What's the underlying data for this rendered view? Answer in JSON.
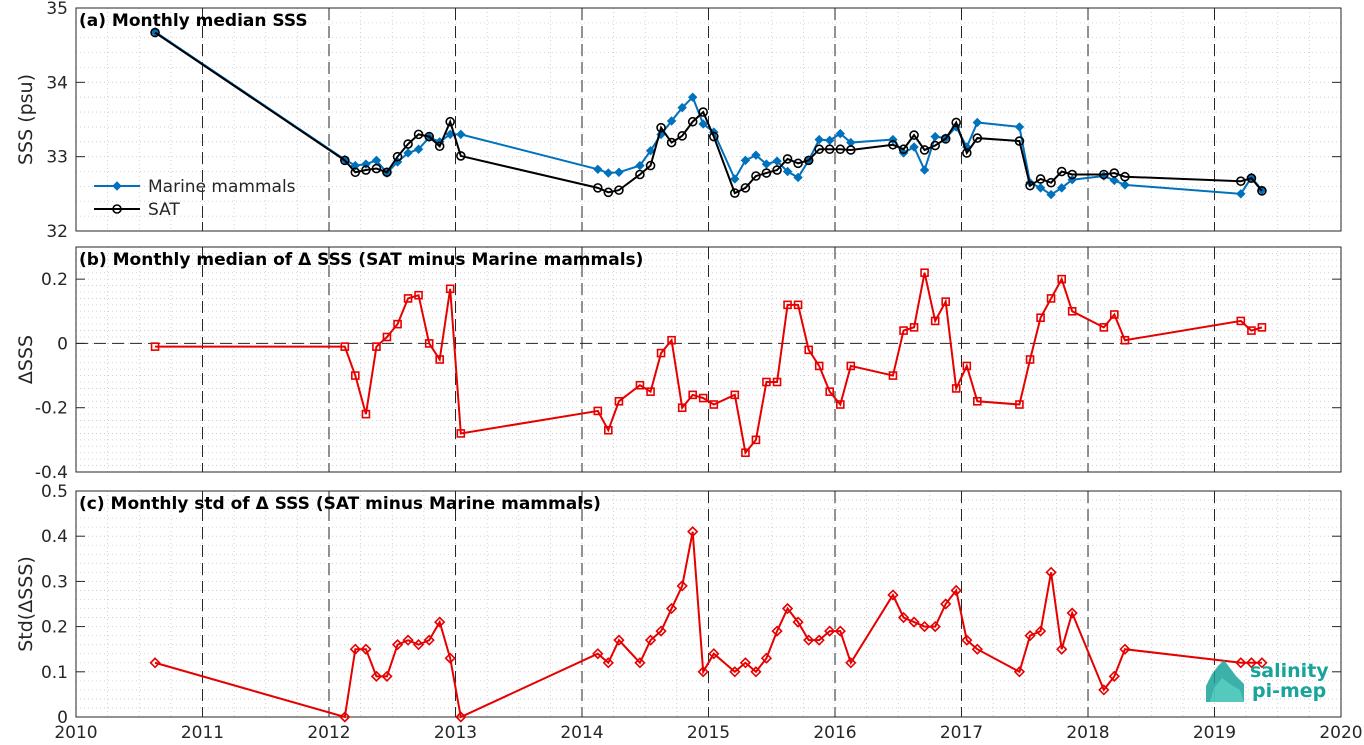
{
  "colors": {
    "marine": "#0072BD",
    "sat": "#000000",
    "delta": "#E60000",
    "frame": "#262626",
    "logo": "#1aa39a"
  },
  "x_ticks": [
    "2010",
    "2011",
    "2012",
    "2013",
    "2014",
    "2015",
    "2016",
    "2017",
    "2018",
    "2019",
    "2020"
  ],
  "logo": {
    "line1": "salinity",
    "line2": "pi-mep"
  },
  "chart_data": [
    {
      "type": "line",
      "title": "(a) Monthly median SSS",
      "ylabel": "SSS (psu)",
      "xlim": [
        2010,
        2020
      ],
      "ylim": [
        32,
        35
      ],
      "yticks": [
        "32",
        "33",
        "34",
        "35"
      ],
      "legend": {
        "placement": "lower-left",
        "entries": [
          "Marine mammals",
          "SAT"
        ]
      },
      "series": [
        {
          "name": "Marine mammals",
          "marker": "diamond",
          "x": [
            2010.625,
            2012.125,
            2012.208,
            2012.292,
            2012.375,
            2012.458,
            2012.542,
            2012.625,
            2012.708,
            2012.792,
            2012.875,
            2012.958,
            2013.042,
            2014.125,
            2014.208,
            2014.292,
            2014.458,
            2014.542,
            2014.625,
            2014.708,
            2014.792,
            2014.875,
            2014.958,
            2015.042,
            2015.208,
            2015.292,
            2015.375,
            2015.458,
            2015.542,
            2015.625,
            2015.708,
            2015.792,
            2015.875,
            2015.958,
            2016.042,
            2016.125,
            2016.458,
            2016.542,
            2016.625,
            2016.708,
            2016.792,
            2016.875,
            2016.958,
            2017.042,
            2017.125,
            2017.458,
            2017.542,
            2017.625,
            2017.708,
            2017.792,
            2017.875,
            2018.125,
            2018.208,
            2018.292,
            2019.208,
            2019.292,
            2019.375
          ],
          "y": [
            34.68,
            32.96,
            32.88,
            32.9,
            32.95,
            32.78,
            32.93,
            33.05,
            33.1,
            33.26,
            33.2,
            33.3,
            33.3,
            32.83,
            32.78,
            32.79,
            32.88,
            33.08,
            33.3,
            33.48,
            33.66,
            33.8,
            33.44,
            33.33,
            32.7,
            32.95,
            33.02,
            32.9,
            32.94,
            32.8,
            32.72,
            32.95,
            33.23,
            33.22,
            33.31,
            33.19,
            33.23,
            33.05,
            33.13,
            32.82,
            33.27,
            33.25,
            33.4,
            33.13,
            33.46,
            33.4,
            32.65,
            32.58,
            32.49,
            32.58,
            32.69,
            32.74,
            32.68,
            32.62,
            32.5,
            32.72,
            32.55
          ]
        },
        {
          "name": "SAT",
          "marker": "circle",
          "x": [
            2010.625,
            2012.125,
            2012.208,
            2012.292,
            2012.375,
            2012.458,
            2012.542,
            2012.625,
            2012.708,
            2012.792,
            2012.875,
            2012.958,
            2013.042,
            2014.125,
            2014.208,
            2014.292,
            2014.458,
            2014.542,
            2014.625,
            2014.708,
            2014.792,
            2014.875,
            2014.958,
            2015.042,
            2015.208,
            2015.292,
            2015.375,
            2015.458,
            2015.542,
            2015.625,
            2015.708,
            2015.792,
            2015.875,
            2015.958,
            2016.042,
            2016.125,
            2016.458,
            2016.542,
            2016.625,
            2016.708,
            2016.792,
            2016.875,
            2016.958,
            2017.042,
            2017.125,
            2017.458,
            2017.542,
            2017.625,
            2017.708,
            2017.792,
            2017.875,
            2018.125,
            2018.208,
            2018.292,
            2019.208,
            2019.292,
            2019.375
          ],
          "y": [
            34.67,
            32.95,
            32.79,
            32.82,
            32.84,
            32.79,
            33.0,
            33.17,
            33.3,
            33.27,
            33.14,
            33.47,
            33.01,
            32.58,
            32.52,
            32.55,
            32.76,
            32.88,
            33.39,
            33.19,
            33.28,
            33.47,
            33.6,
            33.27,
            32.51,
            32.58,
            32.74,
            32.78,
            32.82,
            32.97,
            32.91,
            32.95,
            33.1,
            33.1,
            33.1,
            33.09,
            33.16,
            33.1,
            33.29,
            33.09,
            33.15,
            33.24,
            33.46,
            33.05,
            33.25,
            33.21,
            32.61,
            32.7,
            32.65,
            32.8,
            32.76,
            32.76,
            32.78,
            32.73,
            32.67,
            32.71,
            32.54
          ]
        }
      ]
    },
    {
      "type": "line",
      "title": "(b) Monthly median of Δ SSS (SAT minus Marine mammals)",
      "ylabel": "ΔSSS",
      "xlim": [
        2010,
        2020
      ],
      "ylim": [
        -0.4,
        0.3
      ],
      "yticks": [
        "-0.4",
        "-0.2",
        "0",
        "0.2"
      ],
      "reference_line": 0,
      "series": [
        {
          "marker": "square",
          "x": [
            2010.625,
            2012.125,
            2012.208,
            2012.292,
            2012.375,
            2012.458,
            2012.542,
            2012.625,
            2012.708,
            2012.792,
            2012.875,
            2012.958,
            2013.042,
            2014.125,
            2014.208,
            2014.292,
            2014.458,
            2014.542,
            2014.625,
            2014.708,
            2014.792,
            2014.875,
            2014.958,
            2015.042,
            2015.208,
            2015.292,
            2015.375,
            2015.458,
            2015.542,
            2015.625,
            2015.708,
            2015.792,
            2015.875,
            2015.958,
            2016.042,
            2016.125,
            2016.458,
            2016.542,
            2016.625,
            2016.708,
            2016.792,
            2016.875,
            2016.958,
            2017.042,
            2017.125,
            2017.458,
            2017.542,
            2017.625,
            2017.708,
            2017.792,
            2017.875,
            2018.125,
            2018.208,
            2018.292,
            2019.208,
            2019.292,
            2019.375
          ],
          "y": [
            -0.01,
            -0.01,
            -0.1,
            -0.22,
            -0.01,
            0.02,
            0.06,
            0.14,
            0.15,
            0.0,
            -0.05,
            0.17,
            -0.28,
            -0.21,
            -0.27,
            -0.18,
            -0.13,
            -0.15,
            -0.03,
            0.01,
            -0.2,
            -0.16,
            -0.17,
            -0.19,
            -0.16,
            -0.34,
            -0.3,
            -0.12,
            -0.12,
            0.12,
            0.12,
            -0.02,
            -0.07,
            -0.15,
            -0.19,
            -0.07,
            -0.1,
            0.04,
            0.05,
            0.22,
            0.07,
            0.13,
            -0.14,
            -0.07,
            -0.18,
            -0.19,
            -0.05,
            0.08,
            0.14,
            0.2,
            0.1,
            0.05,
            0.09,
            0.01,
            0.07,
            0.04,
            0.05
          ]
        }
      ]
    },
    {
      "type": "line",
      "title": "(c) Monthly std of Δ SSS (SAT minus Marine mammals)",
      "ylabel": "Std(ΔSSS)",
      "xlim": [
        2010,
        2020
      ],
      "ylim": [
        0,
        0.5
      ],
      "yticks": [
        "0",
        "0.1",
        "0.2",
        "0.3",
        "0.4",
        "0.5"
      ],
      "series": [
        {
          "marker": "diamond",
          "x": [
            2010.625,
            2012.125,
            2012.208,
            2012.292,
            2012.375,
            2012.458,
            2012.542,
            2012.625,
            2012.708,
            2012.792,
            2012.875,
            2012.958,
            2013.042,
            2014.125,
            2014.208,
            2014.292,
            2014.458,
            2014.542,
            2014.625,
            2014.708,
            2014.792,
            2014.875,
            2014.958,
            2015.042,
            2015.208,
            2015.292,
            2015.375,
            2015.458,
            2015.542,
            2015.625,
            2015.708,
            2015.792,
            2015.875,
            2015.958,
            2016.042,
            2016.125,
            2016.458,
            2016.542,
            2016.625,
            2016.708,
            2016.792,
            2016.875,
            2016.958,
            2017.042,
            2017.125,
            2017.458,
            2017.542,
            2017.625,
            2017.708,
            2017.792,
            2017.875,
            2018.125,
            2018.208,
            2018.292,
            2019.208,
            2019.292,
            2019.375
          ],
          "y": [
            0.12,
            0.0,
            0.15,
            0.15,
            0.09,
            0.09,
            0.16,
            0.17,
            0.16,
            0.17,
            0.21,
            0.13,
            0.0,
            0.14,
            0.12,
            0.17,
            0.12,
            0.17,
            0.19,
            0.24,
            0.29,
            0.41,
            0.1,
            0.14,
            0.1,
            0.12,
            0.1,
            0.13,
            0.19,
            0.24,
            0.21,
            0.17,
            0.17,
            0.19,
            0.19,
            0.12,
            0.27,
            0.22,
            0.21,
            0.2,
            0.2,
            0.25,
            0.28,
            0.17,
            0.15,
            0.1,
            0.18,
            0.19,
            0.32,
            0.15,
            0.23,
            0.06,
            0.09,
            0.15,
            0.12,
            0.12,
            0.12
          ]
        }
      ]
    }
  ]
}
